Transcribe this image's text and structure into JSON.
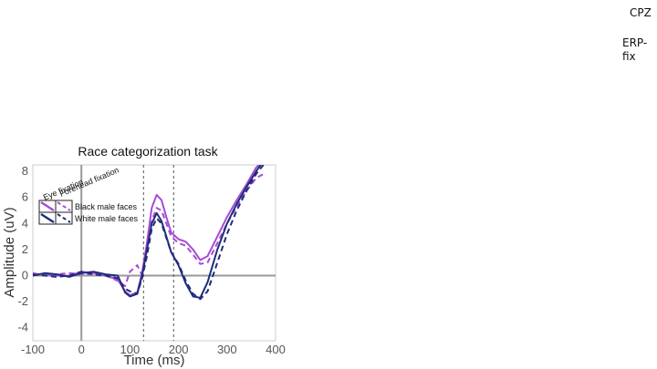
{
  "corner": {
    "electrode": "CPZ",
    "caption": "ERP-fix"
  },
  "chart_data": {
    "type": "line",
    "title": "Race categorization task",
    "xlabel": "Time (ms)",
    "ylabel": "Amplitude (uV)",
    "xlim": [
      -100,
      400
    ],
    "ylim": [
      -5,
      8.5
    ],
    "xticks": [
      -100,
      0,
      100,
      200,
      300,
      400
    ],
    "yticks": [
      -4,
      -2,
      0,
      2,
      4,
      6,
      8
    ],
    "grid": false,
    "vlines": [
      128,
      190
    ],
    "legend": {
      "placement": "top-left",
      "column_headers": [
        "Eye fixation",
        "Forehead fixation"
      ],
      "rows": [
        "Black male faces",
        "White male faces"
      ]
    },
    "colors": {
      "black_faces": "#a64cd6",
      "white_faces": "#1f2d7a"
    },
    "series": [
      {
        "group": "Black male faces",
        "fixation": "Eye fixation",
        "dash": "solid",
        "color": "#a64cd6",
        "x": [
          -100,
          -75,
          -50,
          -25,
          0,
          25,
          50,
          75,
          90,
          100,
          115,
          125,
          135,
          145,
          155,
          165,
          175,
          185,
          200,
          215,
          230,
          245,
          260,
          280,
          300,
          320,
          340,
          360,
          375
        ],
        "y": [
          0.1,
          0.1,
          0.0,
          0.0,
          0.3,
          0.2,
          0.0,
          -0.3,
          -1.2,
          -1.5,
          -1.3,
          0.2,
          2.5,
          5.2,
          6.2,
          5.8,
          4.5,
          3.3,
          2.8,
          2.6,
          2.0,
          1.2,
          1.5,
          3.0,
          4.5,
          5.8,
          7.0,
          8.3,
          8.8
        ]
      },
      {
        "group": "Black male faces",
        "fixation": "Forehead fixation",
        "dash": "dashed",
        "color": "#a64cd6",
        "x": [
          -100,
          -75,
          -50,
          -25,
          0,
          25,
          50,
          75,
          90,
          100,
          115,
          125,
          135,
          145,
          155,
          165,
          175,
          185,
          200,
          215,
          230,
          245,
          260,
          280,
          300,
          320,
          340,
          360,
          375
        ],
        "y": [
          0.2,
          0.0,
          0.1,
          0.2,
          0.1,
          0.1,
          0.0,
          -0.4,
          -0.8,
          0.3,
          0.8,
          0.0,
          1.8,
          4.2,
          5.2,
          5.0,
          4.0,
          3.0,
          2.5,
          2.3,
          1.6,
          0.9,
          1.0,
          2.5,
          4.0,
          5.3,
          6.5,
          7.5,
          7.8
        ]
      },
      {
        "group": "White male faces",
        "fixation": "Eye fixation",
        "dash": "solid",
        "color": "#1f2d7a",
        "x": [
          -100,
          -75,
          -50,
          -25,
          0,
          25,
          50,
          75,
          90,
          100,
          115,
          125,
          135,
          145,
          155,
          165,
          175,
          185,
          200,
          215,
          230,
          245,
          260,
          280,
          300,
          320,
          340,
          360,
          375
        ],
        "y": [
          0.0,
          0.2,
          0.1,
          -0.1,
          0.2,
          0.3,
          0.1,
          0.0,
          -1.3,
          -1.6,
          -1.4,
          0.0,
          2.0,
          4.0,
          4.8,
          4.2,
          3.0,
          1.8,
          0.8,
          -0.6,
          -1.6,
          -1.7,
          -0.5,
          2.0,
          4.0,
          5.5,
          6.8,
          8.0,
          8.8
        ]
      },
      {
        "group": "White male faces",
        "fixation": "Forehead fixation",
        "dash": "dashed",
        "color": "#1f2d7a",
        "x": [
          -100,
          -75,
          -50,
          -25,
          0,
          25,
          50,
          75,
          90,
          100,
          115,
          125,
          135,
          145,
          155,
          165,
          175,
          185,
          200,
          215,
          230,
          245,
          260,
          280,
          300,
          320,
          340,
          360,
          375
        ],
        "y": [
          0.1,
          0.0,
          -0.1,
          0.0,
          0.3,
          0.1,
          0.0,
          -0.2,
          -1.0,
          -1.2,
          -1.4,
          -0.2,
          1.5,
          3.6,
          4.4,
          4.0,
          2.9,
          1.8,
          0.9,
          -0.4,
          -1.4,
          -1.8,
          -1.2,
          1.0,
          3.2,
          5.0,
          6.5,
          7.8,
          8.5
        ]
      }
    ]
  }
}
